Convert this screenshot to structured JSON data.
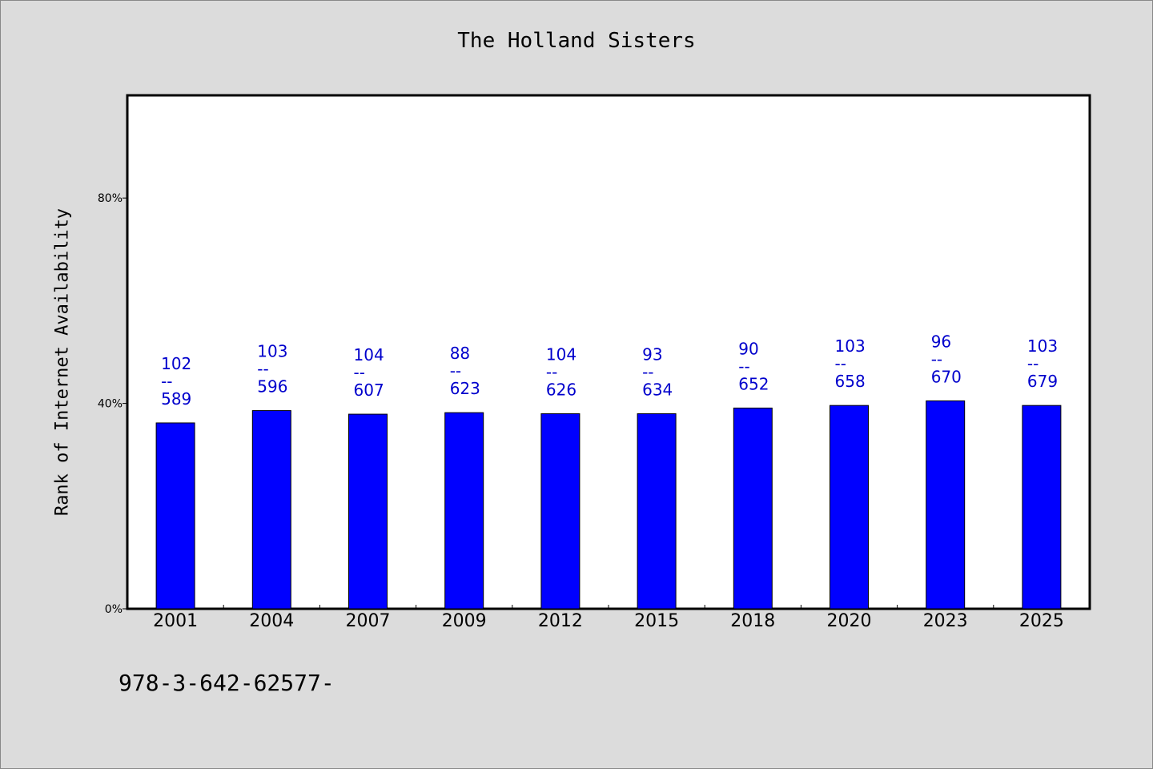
{
  "chart_data": {
    "type": "bar",
    "title": "The Holland Sisters",
    "xlabel": "",
    "ylabel": "Rank of Internet Availability",
    "categories": [
      "2001",
      "2004",
      "2007",
      "2009",
      "2012",
      "2015",
      "2018",
      "2020",
      "2023",
      "2025"
    ],
    "values": [
      36.2,
      38.6,
      37.9,
      38.2,
      38.0,
      38.0,
      39.1,
      39.6,
      40.5,
      39.6
    ],
    "data_labels": [
      {
        "top": "102",
        "mid": "--",
        "bottom": "589"
      },
      {
        "top": "103",
        "mid": "--",
        "bottom": "596"
      },
      {
        "top": "104",
        "mid": "--",
        "bottom": "607"
      },
      {
        "top": "88",
        "mid": "--",
        "bottom": "623"
      },
      {
        "top": "104",
        "mid": "--",
        "bottom": "626"
      },
      {
        "top": "93",
        "mid": "--",
        "bottom": "634"
      },
      {
        "top": "90",
        "mid": "--",
        "bottom": "652"
      },
      {
        "top": "103",
        "mid": "--",
        "bottom": "658"
      },
      {
        "top": "96",
        "mid": "--",
        "bottom": "670"
      },
      {
        "top": "103",
        "mid": "--",
        "bottom": "679"
      }
    ],
    "ylim": [
      0,
      100
    ],
    "yticks": [
      0,
      40,
      80
    ],
    "ytick_labels": [
      "0%",
      "40%",
      "80%"
    ],
    "grid": false,
    "bar_color": "#0000ff",
    "label_color": "#0000cc"
  },
  "footer_text": "978-3-642-62577-"
}
